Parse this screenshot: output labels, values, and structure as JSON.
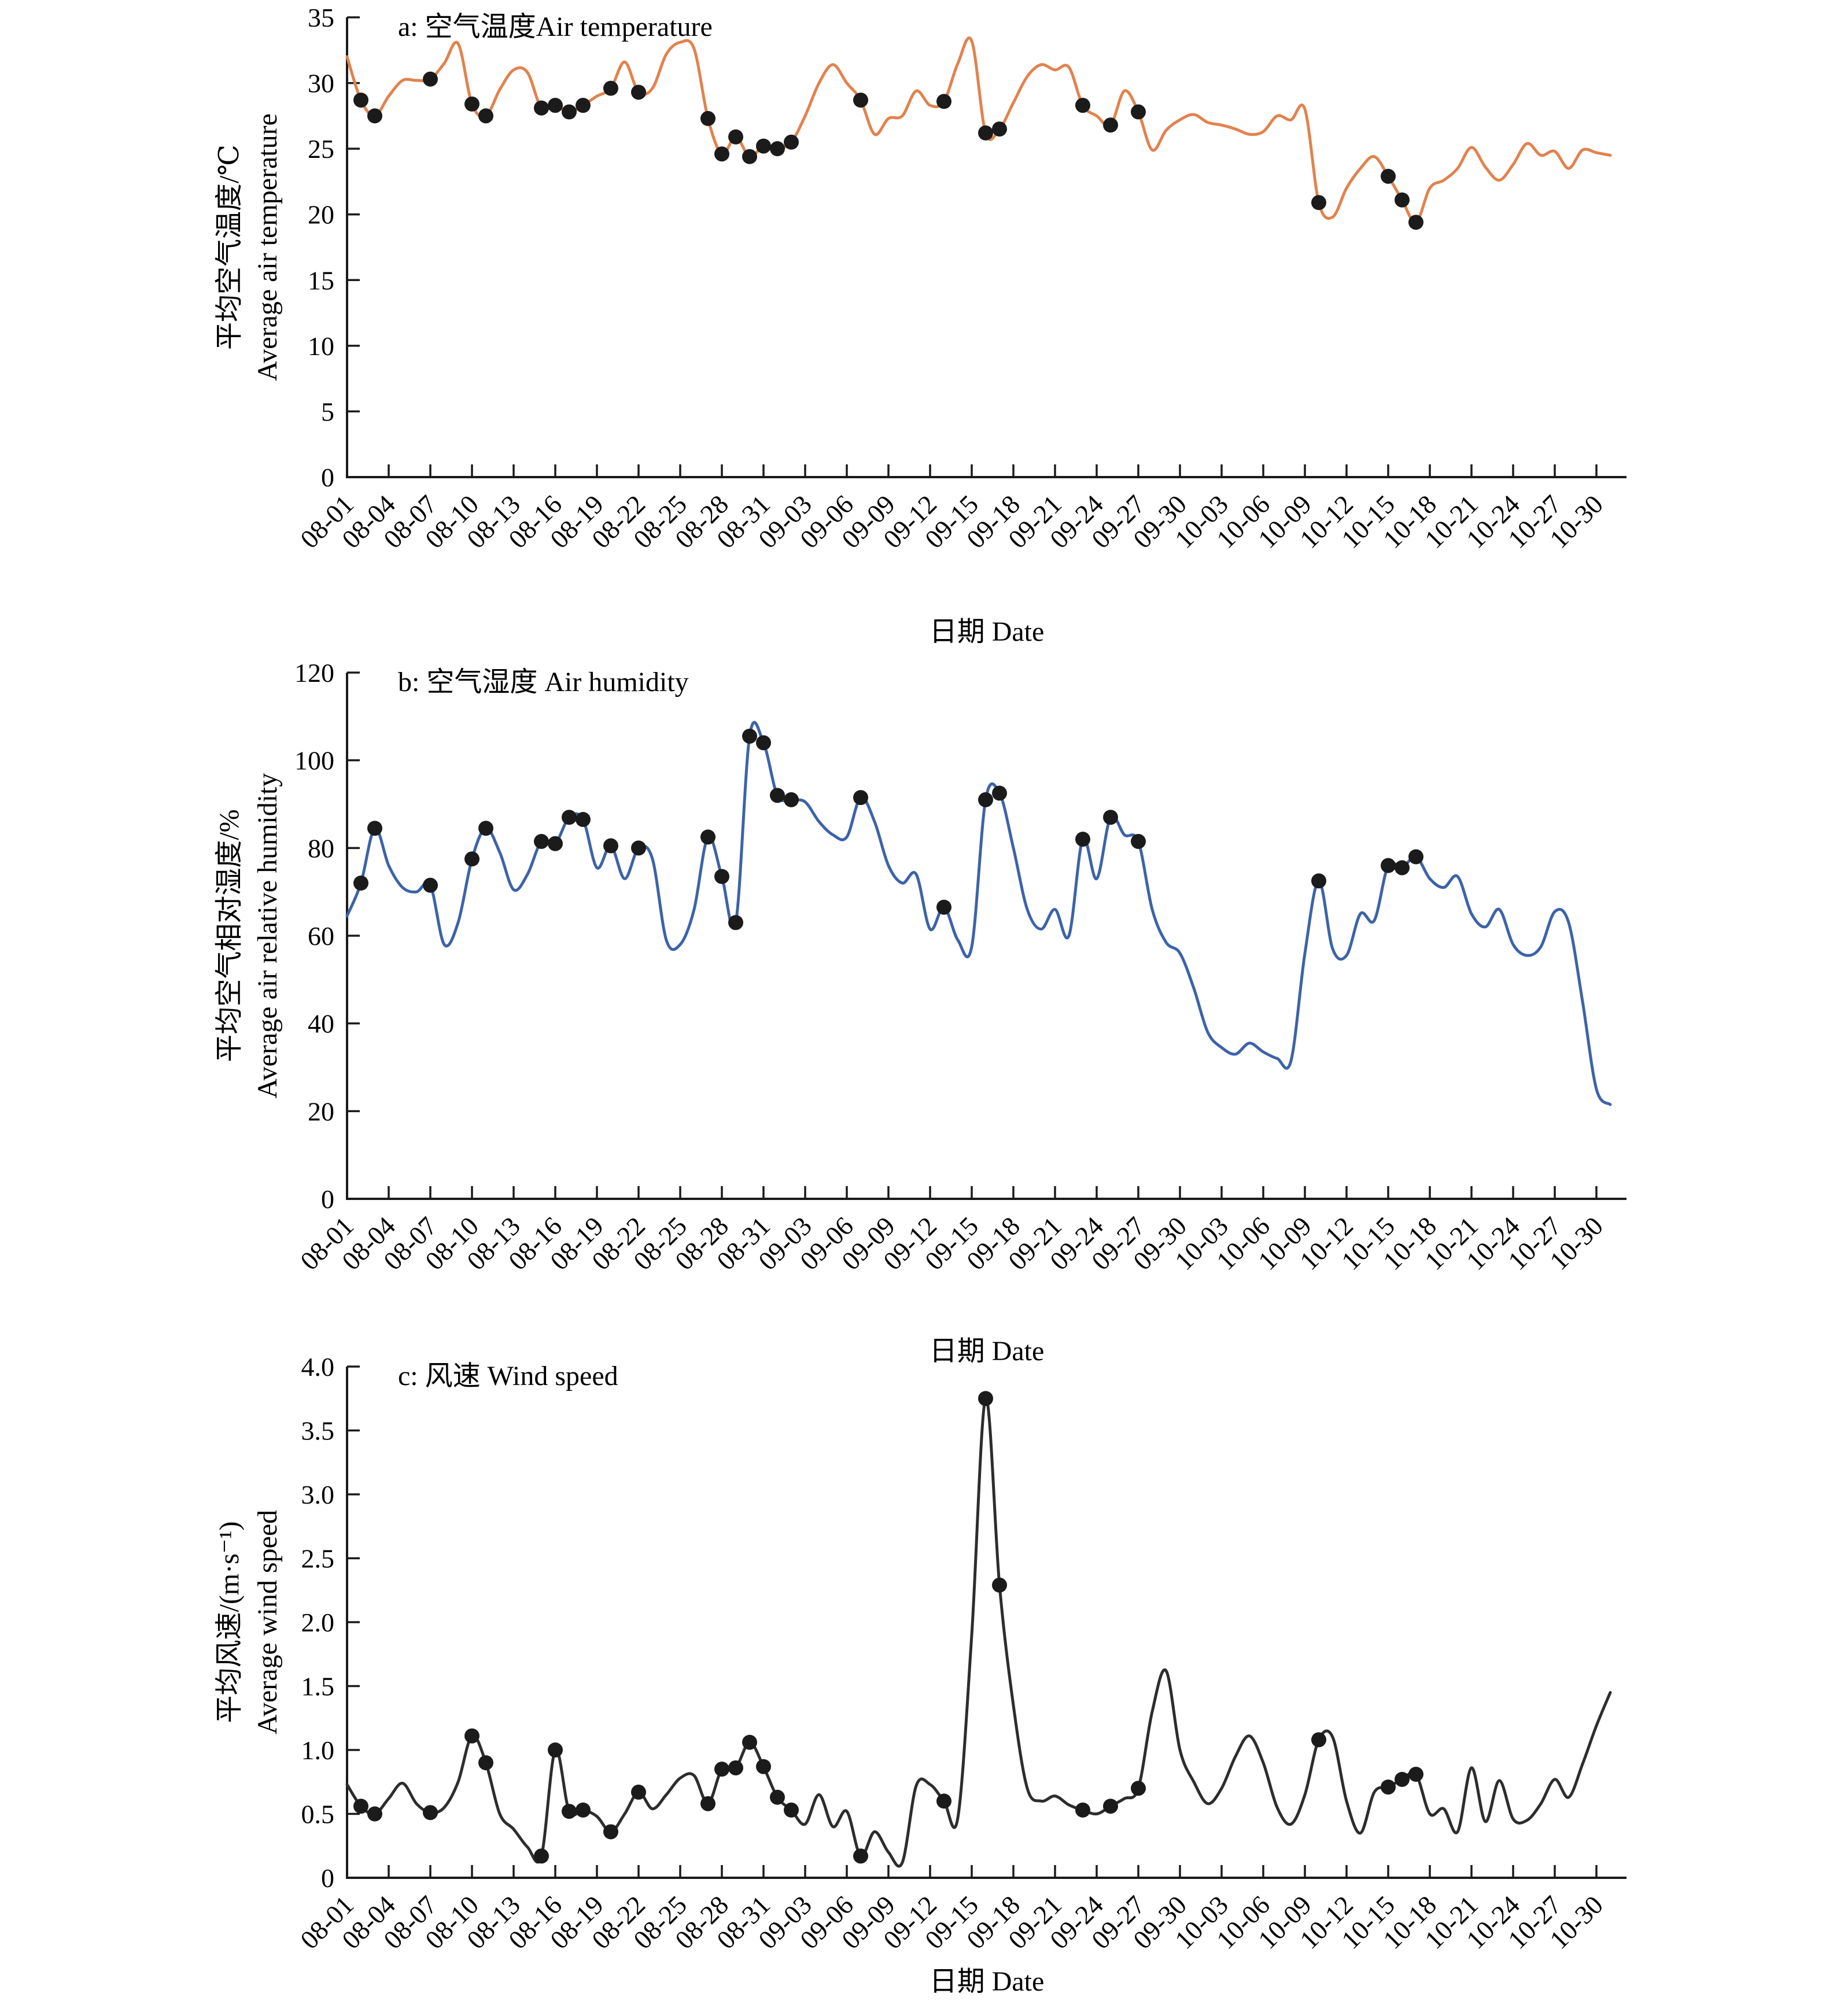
{
  "figure": {
    "x_axis_caption": "日期 Date",
    "marker_color": "#1b1b1b",
    "axis_color": "#1a1a1a",
    "charts": [
      {
        "title": "a: 空气温度Air temperature",
        "ylabel_cn": "平均空气温度/℃",
        "ylabel_en": "Average air temperature",
        "line_color": "#E2824E",
        "y_tick_labels": [
          "0",
          "5",
          "10",
          "15",
          "20",
          "25",
          "30",
          "35"
        ]
      },
      {
        "title": "b: 空气湿度 Air humidity",
        "ylabel_cn": "平均空气相对湿度/%",
        "ylabel_en": "Average air relative humidity",
        "line_color": "#3D63A8",
        "y_tick_labels": [
          "0",
          "20",
          "40",
          "60",
          "80",
          "100",
          "120"
        ]
      },
      {
        "title": "c: 风速 Wind speed",
        "ylabel_cn": "平均风速/(m·s⁻¹)",
        "ylabel_en": "Average wind speed",
        "line_color": "#2D2D2D",
        "y_tick_labels": [
          "0",
          "0.5",
          "1.0",
          "1.5",
          "2.0",
          "2.5",
          "3.0",
          "3.5",
          "4.0"
        ]
      }
    ]
  },
  "chart_data": [
    {
      "type": "line",
      "title": "a: 空气温度Air temperature",
      "xlabel": "日期 Date",
      "ylabel": "平均空气温度/℃ Average air temperature",
      "ylim": [
        0,
        35
      ],
      "ytick_step": 5,
      "grid": false,
      "legend": "none",
      "x": [
        "08-01",
        "08-02",
        "08-03",
        "08-04",
        "08-05",
        "08-06",
        "08-07",
        "08-08",
        "08-09",
        "08-10",
        "08-11",
        "08-12",
        "08-13",
        "08-14",
        "08-15",
        "08-16",
        "08-17",
        "08-18",
        "08-19",
        "08-20",
        "08-21",
        "08-22",
        "08-23",
        "08-24",
        "08-25",
        "08-26",
        "08-27",
        "08-28",
        "08-29",
        "08-30",
        "08-31",
        "09-01",
        "09-02",
        "09-03",
        "09-04",
        "09-05",
        "09-06",
        "09-07",
        "09-08",
        "09-09",
        "09-10",
        "09-11",
        "09-12",
        "09-13",
        "09-14",
        "09-15",
        "09-16",
        "09-17",
        "09-18",
        "09-19",
        "09-20",
        "09-21",
        "09-22",
        "09-23",
        "09-24",
        "09-25",
        "09-26",
        "09-27",
        "09-28",
        "09-29",
        "09-30",
        "10-01",
        "10-02",
        "10-03",
        "10-04",
        "10-05",
        "10-06",
        "10-07",
        "10-08",
        "10-09",
        "10-10",
        "10-11",
        "10-12",
        "10-13",
        "10-14",
        "10-15",
        "10-16",
        "10-17",
        "10-18",
        "10-19",
        "10-20",
        "10-21",
        "10-22",
        "10-23",
        "10-24",
        "10-25",
        "10-26",
        "10-27",
        "10-28",
        "10-29",
        "10-30",
        "10-31"
      ],
      "values": [
        32.0,
        28.7,
        27.5,
        29.0,
        30.2,
        30.2,
        30.3,
        31.5,
        33.0,
        28.4,
        27.5,
        29.5,
        31.0,
        30.8,
        28.1,
        28.3,
        27.8,
        28.3,
        29.0,
        29.6,
        31.6,
        29.3,
        29.6,
        32.2,
        33.1,
        32.6,
        27.3,
        24.6,
        25.9,
        24.4,
        25.2,
        25.0,
        25.5,
        27.5,
        30.0,
        31.4,
        30.0,
        28.7,
        26.1,
        27.3,
        27.5,
        29.4,
        28.3,
        28.6,
        31.5,
        33.2,
        26.2,
        26.5,
        28.5,
        30.5,
        31.4,
        31.0,
        31.2,
        28.3,
        27.5,
        26.8,
        29.4,
        27.8,
        24.9,
        26.4,
        27.2,
        27.6,
        27.0,
        26.8,
        26.5,
        26.1,
        26.3,
        27.5,
        27.2,
        28.0,
        20.9,
        19.8,
        22.0,
        23.5,
        24.4,
        22.9,
        21.1,
        19.4,
        22.0,
        22.6,
        23.5,
        25.1,
        23.6,
        22.6,
        23.8,
        25.4,
        24.5,
        24.8,
        23.5,
        24.9,
        24.7,
        24.5
      ],
      "marker_dates": [
        "08-02",
        "08-03",
        "08-07",
        "08-10",
        "08-11",
        "08-15",
        "08-16",
        "08-17",
        "08-18",
        "08-20",
        "08-22",
        "08-27",
        "08-28",
        "08-29",
        "08-30",
        "08-31",
        "09-01",
        "09-02",
        "09-07",
        "09-13",
        "09-16",
        "09-17",
        "09-23",
        "09-25",
        "09-27",
        "10-10",
        "10-15",
        "10-16",
        "10-17"
      ]
    },
    {
      "type": "line",
      "title": "b: 空气湿度 Air humidity",
      "xlabel": "日期 Date",
      "ylabel": "平均空气相对湿度/% Average air relative humidity",
      "ylim": [
        0,
        120
      ],
      "ytick_step": 20,
      "grid": false,
      "legend": "none",
      "x": [
        "08-01",
        "08-02",
        "08-03",
        "08-04",
        "08-05",
        "08-06",
        "08-07",
        "08-08",
        "08-09",
        "08-10",
        "08-11",
        "08-12",
        "08-13",
        "08-14",
        "08-15",
        "08-16",
        "08-17",
        "08-18",
        "08-19",
        "08-20",
        "08-21",
        "08-22",
        "08-23",
        "08-24",
        "08-25",
        "08-26",
        "08-27",
        "08-28",
        "08-29",
        "08-30",
        "08-31",
        "09-01",
        "09-02",
        "09-03",
        "09-04",
        "09-05",
        "09-06",
        "09-07",
        "09-08",
        "09-09",
        "09-10",
        "09-11",
        "09-12",
        "09-13",
        "09-14",
        "09-15",
        "09-16",
        "09-17",
        "09-18",
        "09-19",
        "09-20",
        "09-21",
        "09-22",
        "09-23",
        "09-24",
        "09-25",
        "09-26",
        "09-27",
        "09-28",
        "09-29",
        "09-30",
        "10-01",
        "10-02",
        "10-03",
        "10-04",
        "10-05",
        "10-06",
        "10-07",
        "10-08",
        "10-09",
        "10-10",
        "10-11",
        "10-12",
        "10-13",
        "10-14",
        "10-15",
        "10-16",
        "10-17",
        "10-18",
        "10-19",
        "10-20",
        "10-21",
        "10-22",
        "10-23",
        "10-24",
        "10-25",
        "10-26",
        "10-27",
        "10-28",
        "10-29",
        "10-30",
        "10-31"
      ],
      "values": [
        64.5,
        72,
        84.5,
        76,
        71,
        70,
        71.5,
        58,
        63,
        77.5,
        84.5,
        79,
        70.5,
        74,
        81.5,
        81,
        87,
        86.5,
        75.5,
        80.5,
        73,
        80,
        77.5,
        59,
        58,
        66,
        82.5,
        73.5,
        63,
        105.5,
        104,
        92,
        91,
        90.5,
        86,
        83,
        82.5,
        91.5,
        86,
        76,
        72,
        74,
        61.5,
        66.5,
        59,
        57.5,
        91,
        92.5,
        80,
        66,
        61.5,
        66,
        60,
        82,
        73,
        87,
        83,
        81.5,
        66,
        58.5,
        56,
        48,
        38,
        34.5,
        33,
        35.5,
        33.5,
        32,
        31.5,
        56,
        72.5,
        57,
        55.5,
        65,
        63.5,
        76,
        75.5,
        78,
        73,
        71,
        73.5,
        65,
        62,
        66,
        58,
        55.5,
        57.5,
        65.5,
        63,
        45,
        25,
        21.5
      ],
      "marker_dates": [
        "08-02",
        "08-03",
        "08-07",
        "08-10",
        "08-11",
        "08-15",
        "08-16",
        "08-17",
        "08-18",
        "08-20",
        "08-22",
        "08-27",
        "08-28",
        "08-29",
        "08-30",
        "08-31",
        "09-01",
        "09-02",
        "09-07",
        "09-13",
        "09-16",
        "09-17",
        "09-23",
        "09-25",
        "09-27",
        "10-10",
        "10-15",
        "10-16",
        "10-17"
      ]
    },
    {
      "type": "line",
      "title": "c: 风速 Wind speed",
      "xlabel": "日期 Date",
      "ylabel": "平均风速/(m·s⁻¹) Average wind speed",
      "ylim": [
        0,
        4.0
      ],
      "ytick_step": 0.5,
      "grid": false,
      "legend": "none",
      "x": [
        "08-01",
        "08-02",
        "08-03",
        "08-04",
        "08-05",
        "08-06",
        "08-07",
        "08-08",
        "08-09",
        "08-10",
        "08-11",
        "08-12",
        "08-13",
        "08-14",
        "08-15",
        "08-16",
        "08-17",
        "08-18",
        "08-19",
        "08-20",
        "08-21",
        "08-22",
        "08-23",
        "08-24",
        "08-25",
        "08-26",
        "08-27",
        "08-28",
        "08-29",
        "08-30",
        "08-31",
        "09-01",
        "09-02",
        "09-03",
        "09-04",
        "09-05",
        "09-06",
        "09-07",
        "09-08",
        "09-09",
        "09-10",
        "09-11",
        "09-12",
        "09-13",
        "09-14",
        "09-15",
        "09-16",
        "09-17",
        "09-18",
        "09-19",
        "09-20",
        "09-21",
        "09-22",
        "09-23",
        "09-24",
        "09-25",
        "09-26",
        "09-27",
        "09-28",
        "09-29",
        "09-30",
        "10-01",
        "10-02",
        "10-03",
        "10-04",
        "10-05",
        "10-06",
        "10-07",
        "10-08",
        "10-09",
        "10-10",
        "10-11",
        "10-12",
        "10-13",
        "10-14",
        "10-15",
        "10-16",
        "10-17",
        "10-18",
        "10-19",
        "10-20",
        "10-21",
        "10-22",
        "10-23",
        "10-24",
        "10-25",
        "10-26",
        "10-27",
        "10-28",
        "10-29",
        "10-30",
        "10-31"
      ],
      "values": [
        0.73,
        0.56,
        0.5,
        0.62,
        0.74,
        0.58,
        0.51,
        0.55,
        0.75,
        1.11,
        0.9,
        0.5,
        0.38,
        0.24,
        0.17,
        1.0,
        0.52,
        0.53,
        0.48,
        0.36,
        0.5,
        0.67,
        0.54,
        0.65,
        0.78,
        0.8,
        0.58,
        0.85,
        0.86,
        1.06,
        0.87,
        0.63,
        0.53,
        0.42,
        0.65,
        0.4,
        0.52,
        0.17,
        0.36,
        0.2,
        0.12,
        0.72,
        0.73,
        0.6,
        0.47,
        1.9,
        3.75,
        2.29,
        1.35,
        0.7,
        0.6,
        0.64,
        0.57,
        0.53,
        0.5,
        0.56,
        0.62,
        0.7,
        1.3,
        1.62,
        1.0,
        0.75,
        0.58,
        0.7,
        0.95,
        1.11,
        0.9,
        0.55,
        0.42,
        0.65,
        1.08,
        1.1,
        0.6,
        0.35,
        0.67,
        0.71,
        0.77,
        0.81,
        0.5,
        0.54,
        0.36,
        0.86,
        0.44,
        0.76,
        0.46,
        0.45,
        0.58,
        0.77,
        0.63,
        0.89,
        1.19,
        1.45
      ],
      "marker_dates": [
        "08-02",
        "08-03",
        "08-07",
        "08-10",
        "08-11",
        "08-15",
        "08-16",
        "08-17",
        "08-18",
        "08-20",
        "08-22",
        "08-27",
        "08-28",
        "08-29",
        "08-30",
        "08-31",
        "09-01",
        "09-02",
        "09-07",
        "09-13",
        "09-16",
        "09-17",
        "09-23",
        "09-25",
        "09-27",
        "10-10",
        "10-15",
        "10-16",
        "10-17"
      ]
    }
  ]
}
